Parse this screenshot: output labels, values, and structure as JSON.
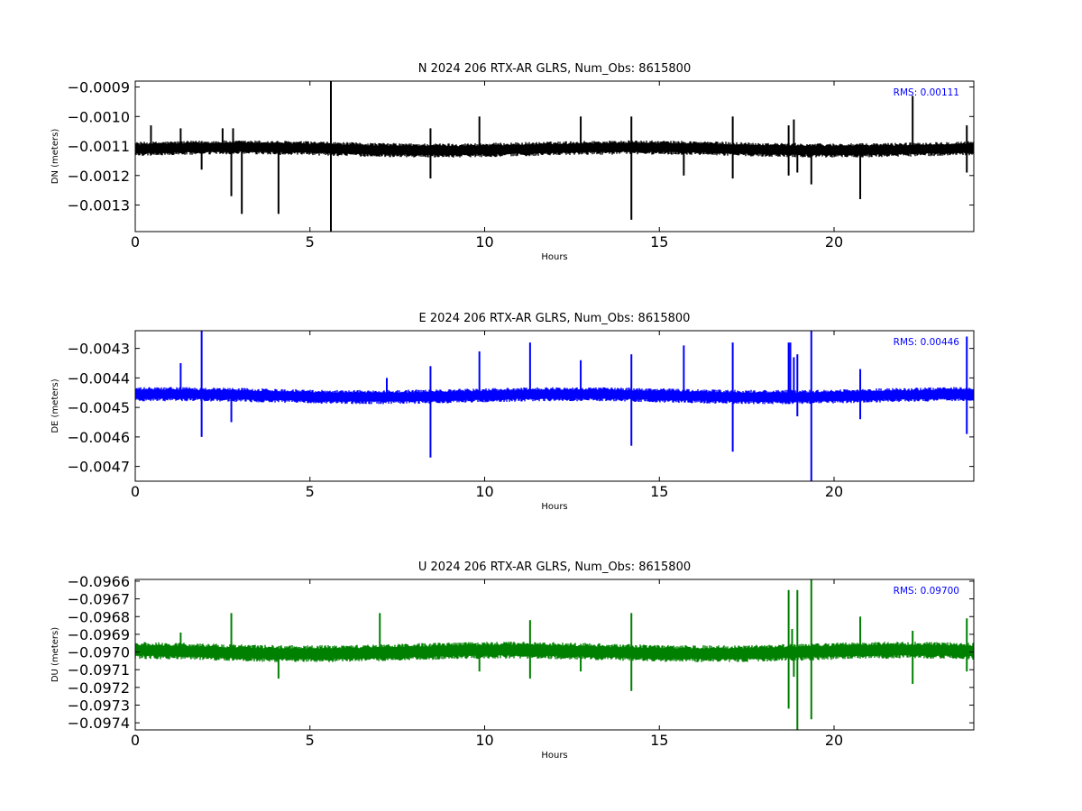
{
  "chart_data": [
    {
      "type": "line",
      "title": "N 2024 206 RTX-AR  GLRS, Num_Obs: 8615800",
      "xlabel": "Hours",
      "ylabel": "DN (meters)",
      "xlim": [
        0,
        24
      ],
      "ylim": [
        -0.00139,
        -0.00088
      ],
      "xticks": [
        0,
        5,
        10,
        15,
        20
      ],
      "xtick_labels": [
        "0",
        "5",
        "10",
        "15",
        "20"
      ],
      "yticks": [
        -0.0009,
        -0.001,
        -0.0011,
        -0.0012,
        -0.0013
      ],
      "ytick_labels": [
        "−0.0009",
        "−0.0010",
        "−0.0011",
        "−0.0012",
        "−0.0013"
      ],
      "annotation": "RMS:  0.00111",
      "annotation_color": "#0000ff",
      "series_color": "#000000",
      "baseline": -0.00111,
      "band_half_width": 2e-05,
      "spikes": [
        [
          0.45,
          -0.00103
        ],
        [
          1.3,
          -0.00104
        ],
        [
          1.9,
          -0.00118
        ],
        [
          2.5,
          -0.00104
        ],
        [
          2.75,
          -0.00127
        ],
        [
          2.8,
          -0.00104
        ],
        [
          3.05,
          -0.00133
        ],
        [
          4.1,
          -0.00133
        ],
        [
          5.6,
          -0.00088
        ],
        [
          5.6,
          -0.00139
        ],
        [
          8.45,
          -0.00104
        ],
        [
          8.45,
          -0.00121
        ],
        [
          9.85,
          -0.001
        ],
        [
          12.75,
          -0.001
        ],
        [
          14.2,
          -0.001
        ],
        [
          14.2,
          -0.00135
        ],
        [
          15.7,
          -0.0012
        ],
        [
          17.1,
          -0.001
        ],
        [
          17.1,
          -0.00121
        ],
        [
          18.7,
          -0.00103
        ],
        [
          18.7,
          -0.0012
        ],
        [
          18.85,
          -0.00101
        ],
        [
          18.95,
          -0.00119
        ],
        [
          19.35,
          -0.00123
        ],
        [
          20.75,
          -0.00128
        ],
        [
          22.25,
          -0.00093
        ],
        [
          23.8,
          -0.00103
        ],
        [
          23.8,
          -0.00119
        ]
      ]
    },
    {
      "type": "line",
      "title": "E 2024 206 RTX-AR  GLRS, Num_Obs: 8615800",
      "xlabel": "Hours",
      "ylabel": "DE (meters)",
      "xlim": [
        0,
        24
      ],
      "ylim": [
        -0.00475,
        -0.00424
      ],
      "xticks": [
        0,
        5,
        10,
        15,
        20
      ],
      "xtick_labels": [
        "0",
        "5",
        "10",
        "15",
        "20"
      ],
      "yticks": [
        -0.0043,
        -0.0044,
        -0.0045,
        -0.0046,
        -0.0047
      ],
      "ytick_labels": [
        "−0.0043",
        "−0.0044",
        "−0.0045",
        "−0.0046",
        "−0.0047"
      ],
      "annotation": "RMS:  0.00446",
      "annotation_color": "#0000ff",
      "series_color": "#0000ff",
      "baseline": -0.00446,
      "band_half_width": 2e-05,
      "spikes": [
        [
          1.3,
          -0.00435
        ],
        [
          1.9,
          -0.00424
        ],
        [
          1.9,
          -0.0046
        ],
        [
          2.75,
          -0.00455
        ],
        [
          7.2,
          -0.0044
        ],
        [
          8.45,
          -0.00436
        ],
        [
          8.45,
          -0.00467
        ],
        [
          9.85,
          -0.00431
        ],
        [
          11.3,
          -0.00428
        ],
        [
          12.75,
          -0.00434
        ],
        [
          14.2,
          -0.00432
        ],
        [
          14.2,
          -0.00463
        ],
        [
          15.7,
          -0.00429
        ],
        [
          17.1,
          -0.00428
        ],
        [
          17.1,
          -0.00465
        ],
        [
          18.7,
          -0.00428
        ],
        [
          18.75,
          -0.00428
        ],
        [
          18.85,
          -0.00433
        ],
        [
          18.95,
          -0.00432
        ],
        [
          18.95,
          -0.00453
        ],
        [
          19.35,
          -0.00424
        ],
        [
          19.35,
          -0.00475
        ],
        [
          20.75,
          -0.00437
        ],
        [
          20.75,
          -0.00454
        ],
        [
          23.8,
          -0.00426
        ],
        [
          23.8,
          -0.00459
        ]
      ]
    },
    {
      "type": "line",
      "title": "U 2024 206 RTX-AR  GLRS, Num_Obs: 8615800",
      "xlabel": "Hours",
      "ylabel": "DU (meters)",
      "xlim": [
        0,
        24
      ],
      "ylim": [
        -0.09744,
        -0.09659
      ],
      "xticks": [
        0,
        5,
        10,
        15,
        20
      ],
      "xtick_labels": [
        "0",
        "5",
        "10",
        "15",
        "20"
      ],
      "yticks": [
        -0.0966,
        -0.0967,
        -0.0968,
        -0.0969,
        -0.097,
        -0.0971,
        -0.0972,
        -0.0973,
        -0.0974
      ],
      "ytick_labels": [
        "−0.0966",
        "−0.0967",
        "−0.0968",
        "−0.0969",
        "−0.0970",
        "−0.0971",
        "−0.0972",
        "−0.0973",
        "−0.0974"
      ],
      "annotation": "RMS:  0.09700",
      "annotation_color": "#0000ff",
      "series_color": "#008000",
      "baseline": -0.097,
      "band_half_width": 4e-05,
      "spikes": [
        [
          1.3,
          -0.09689
        ],
        [
          2.75,
          -0.09678
        ],
        [
          4.1,
          -0.09715
        ],
        [
          7.0,
          -0.09678
        ],
        [
          9.85,
          -0.09711
        ],
        [
          11.3,
          -0.09682
        ],
        [
          11.3,
          -0.09715
        ],
        [
          12.75,
          -0.09711
        ],
        [
          14.2,
          -0.09678
        ],
        [
          14.2,
          -0.09722
        ],
        [
          18.7,
          -0.09665
        ],
        [
          18.7,
          -0.09732
        ],
        [
          18.8,
          -0.09687
        ],
        [
          18.85,
          -0.09714
        ],
        [
          18.95,
          -0.09665
        ],
        [
          18.95,
          -0.09744
        ],
        [
          19.35,
          -0.09659
        ],
        [
          19.35,
          -0.09738
        ],
        [
          20.75,
          -0.0968
        ],
        [
          22.25,
          -0.09688
        ],
        [
          22.25,
          -0.09718
        ],
        [
          23.8,
          -0.09681
        ],
        [
          23.8,
          -0.09711
        ]
      ]
    }
  ]
}
